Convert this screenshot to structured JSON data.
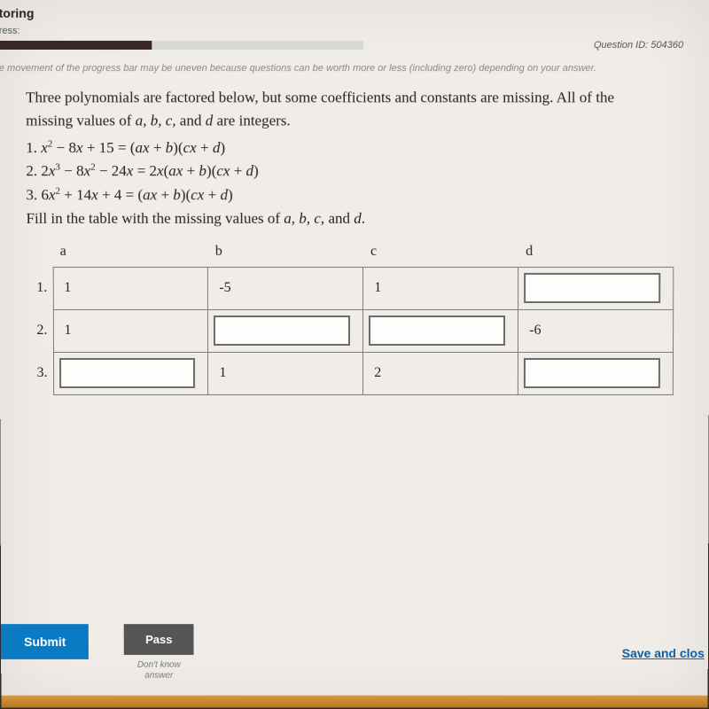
{
  "header": {
    "title_partial": "toring",
    "subtitle_partial": "ress:",
    "progress_pct": 42,
    "question_id_label": "Question ID: 504360",
    "helper_text": "e movement of the progress bar may be uneven because questions can be worth more or less (including zero) depending on your answer."
  },
  "question": {
    "intro_line1": "Three polynomials are factored below, but some coefficients and constants are missing. All of the",
    "intro_line2": "missing values of a, b, c, and d are integers.",
    "equations": [
      "1. x² − 8x + 15 = (ax + b)(cx + d)",
      "2. 2x³ − 8x² − 24x = 2x(ax + b)(cx + d)",
      "3. 6x² + 14x + 4 = (ax + b)(cx + d)"
    ],
    "fill_text": "Fill in the table with the missing values of a, b, c, and d."
  },
  "table": {
    "headers": [
      "a",
      "b",
      "c",
      "d"
    ],
    "rows": [
      {
        "num": "1.",
        "cells": [
          {
            "type": "static",
            "value": "1"
          },
          {
            "type": "static",
            "value": "-5"
          },
          {
            "type": "static",
            "value": "1"
          },
          {
            "type": "input",
            "value": ""
          }
        ]
      },
      {
        "num": "2.",
        "cells": [
          {
            "type": "static",
            "value": "1"
          },
          {
            "type": "input",
            "value": ""
          },
          {
            "type": "input",
            "value": ""
          },
          {
            "type": "static",
            "value": "-6"
          }
        ]
      },
      {
        "num": "3.",
        "cells": [
          {
            "type": "input",
            "value": ""
          },
          {
            "type": "static",
            "value": "1"
          },
          {
            "type": "static",
            "value": "2"
          },
          {
            "type": "input",
            "value": ""
          }
        ]
      }
    ]
  },
  "footer": {
    "submit": "Submit",
    "pass": "Pass",
    "dont_know1": "Don't know",
    "dont_know2": "answer",
    "save": "Save and clos"
  },
  "colors": {
    "submit_bg": "#0a7bc2",
    "pass_bg": "#555555",
    "link": "#0a5fa8",
    "progress_fill": "#3a2828"
  }
}
